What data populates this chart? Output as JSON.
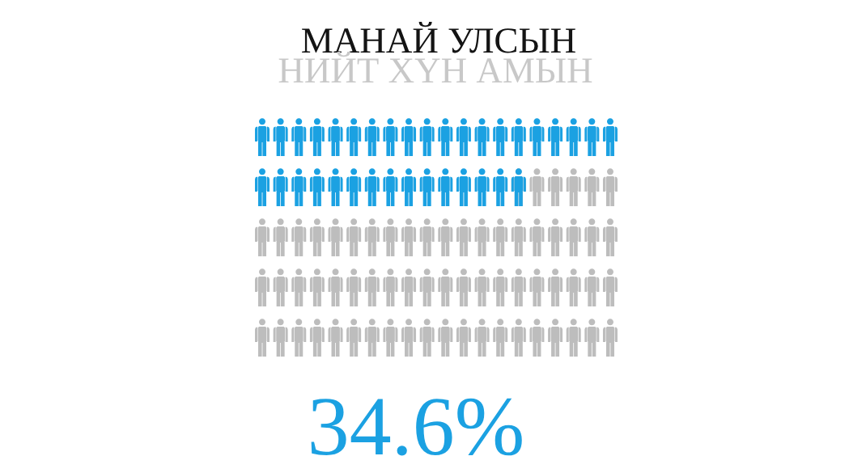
{
  "chart_data": {
    "type": "other",
    "title": "МАНАЙ УЛСЫН",
    "subtitle": "НИЙТ ХҮН АМЫН",
    "values": [
      34.6
    ],
    "value_labels": [
      "34.6%"
    ],
    "color": "#1ba1e2"
  }
}
